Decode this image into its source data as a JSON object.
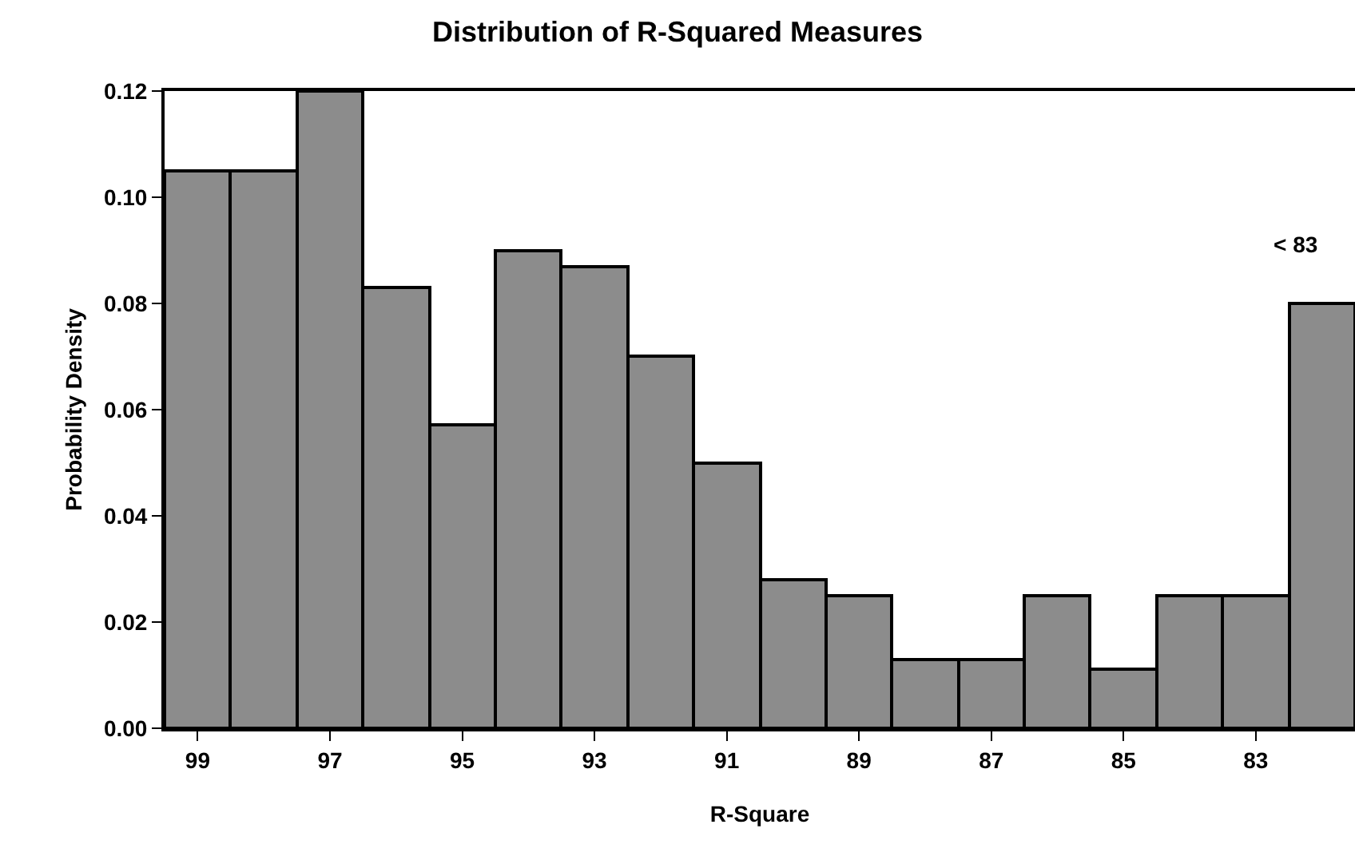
{
  "chart_data": {
    "type": "bar",
    "title": "Distribution of R-Squared Measures",
    "xlabel": "R-Square",
    "ylabel": "Probability Density",
    "categories": [
      "99",
      null,
      "97",
      null,
      "95",
      null,
      "93",
      null,
      "91",
      null,
      "89",
      null,
      "87",
      null,
      "85",
      null,
      "83",
      null
    ],
    "values": [
      0.105,
      0.105,
      0.12,
      0.083,
      0.057,
      0.09,
      0.087,
      0.07,
      0.05,
      0.028,
      0.025,
      0.013,
      0.013,
      0.025,
      0.011,
      0.025,
      0.025,
      0.08
    ],
    "color": "#8c8c8c",
    "ylim": [
      0,
      0.12
    ],
    "yticks": [
      {
        "value": 0,
        "label": "0.00"
      },
      {
        "value": 0.02,
        "label": "0.02"
      },
      {
        "value": 0.04,
        "label": "0.04"
      },
      {
        "value": 0.06,
        "label": "0.06"
      },
      {
        "value": 0.08,
        "label": "0.08"
      },
      {
        "value": 0.1,
        "label": "0.10"
      },
      {
        "value": 0.12,
        "label": "0.12"
      }
    ],
    "annotations": [
      "< 83"
    ],
    "grid": false,
    "legend": false
  }
}
